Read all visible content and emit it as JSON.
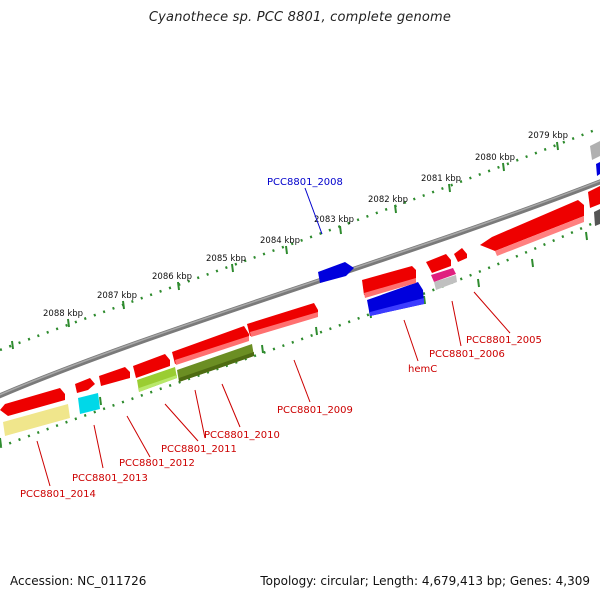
{
  "header": {
    "title": "Cyanothece sp. PCC 8801, complete genome"
  },
  "footer": {
    "accession": "Accession: NC_011726",
    "topology": "Topology: circular; Length: 4,679,413 bp; Genes: 4,309"
  },
  "scale": {
    "ticks": [
      "2079 kbp",
      "2080 kbp",
      "2081 kbp",
      "2082 kbp",
      "2083 kbp",
      "2084 kbp",
      "2085 kbp",
      "2086 kbp",
      "2087 kbp",
      "2088 kbp"
    ],
    "tick_color": "#2e8b2e"
  },
  "genes": [
    {
      "label": "PCC8801_2005",
      "color": "#cc0000"
    },
    {
      "label": "PCC8801_2006",
      "color": "#cc0000"
    },
    {
      "label": "hemC",
      "color": "#cc0000"
    },
    {
      "label": "PCC8801_2008",
      "color": "#0000cc"
    },
    {
      "label": "PCC8801_2009",
      "color": "#cc0000"
    },
    {
      "label": "PCC8801_2010",
      "color": "#cc0000"
    },
    {
      "label": "PCC8801_2011",
      "color": "#cc0000"
    },
    {
      "label": "PCC8801_2012",
      "color": "#cc0000"
    },
    {
      "label": "PCC8801_2013",
      "color": "#cc0000"
    },
    {
      "label": "PCC8801_2014",
      "color": "#cc0000"
    }
  ],
  "colors": {
    "cds_red": "#ee0000",
    "cds_blue": "#0000dd",
    "backbone": "#7a7a7a",
    "lime": "#9acd32",
    "olive": "#6b8e23",
    "cyan": "#00d8e8",
    "khaki": "#f0e68c",
    "magenta": "#e0207f",
    "grey": "#b0b0b0",
    "dark": "#555555"
  }
}
